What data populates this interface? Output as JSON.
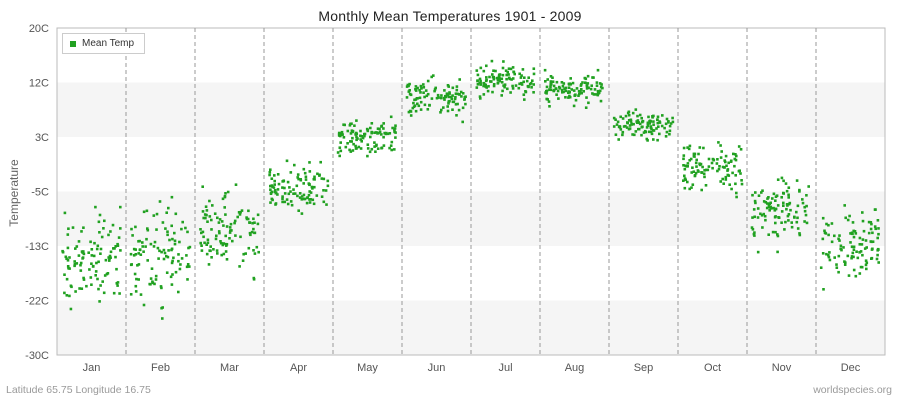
{
  "title": "Monthly Mean Temperatures 1901 - 2009",
  "legend": {
    "label": "Mean Temp"
  },
  "y_axis_title": "Temperature",
  "footer": {
    "left": "Latitude 65.75 Longitude 16.75",
    "right": "worldspecies.org"
  },
  "chart_data": {
    "type": "scatter",
    "title": "Monthly Mean Temperatures 1901 - 2009",
    "xlabel": "",
    "ylabel": "Temperature",
    "ylim": [
      -30,
      20
    ],
    "ytick_values": [
      20,
      12,
      3,
      -5,
      -13,
      -22,
      -30
    ],
    "ytick_labels": [
      "20C",
      "12C",
      "3C",
      "-5C",
      "-13C",
      "-22C",
      "-30C"
    ],
    "categories": [
      "Jan",
      "Feb",
      "Mar",
      "Apr",
      "May",
      "Jun",
      "Jul",
      "Aug",
      "Sep",
      "Oct",
      "Nov",
      "Dec"
    ],
    "legend_entries": [
      "Mean Temp"
    ],
    "legend_position": "top-left",
    "grid": "dashed vertical month separators; alternating horizontal shade bands",
    "years_range": "1901 - 2009",
    "points_per_month": 109,
    "series": [
      {
        "name": "Mean Temp",
        "monthly_mean": [
          -15.0,
          -15.0,
          -10.5,
          -4.5,
          2.9,
          9.6,
          12.1,
          10.8,
          5.0,
          -1.4,
          -7.9,
          -12.6
        ],
        "monthly_std": [
          3.6,
          4.2,
          2.9,
          1.8,
          1.5,
          1.6,
          1.3,
          1.2,
          1.2,
          1.7,
          2.3,
          3.2
        ],
        "monthly_min": [
          -24.5,
          -26.0,
          -18.5,
          -9.0,
          -0.5,
          5.5,
          8.5,
          7.5,
          2.5,
          -5.8,
          -14.0,
          -23.0
        ],
        "monthly_max": [
          -6.5,
          -5.5,
          -4.0,
          -0.5,
          6.5,
          14.0,
          15.5,
          13.8,
          8.3,
          2.2,
          -3.0,
          -5.5
        ]
      }
    ],
    "colors": {
      "marker": "#21a121",
      "band": "#f5f5f5",
      "band_alt": "#ffffff",
      "gridline": "#999999",
      "axis": "#bbbbbb",
      "tick_text": "#555555",
      "title_text": "#222222"
    }
  }
}
